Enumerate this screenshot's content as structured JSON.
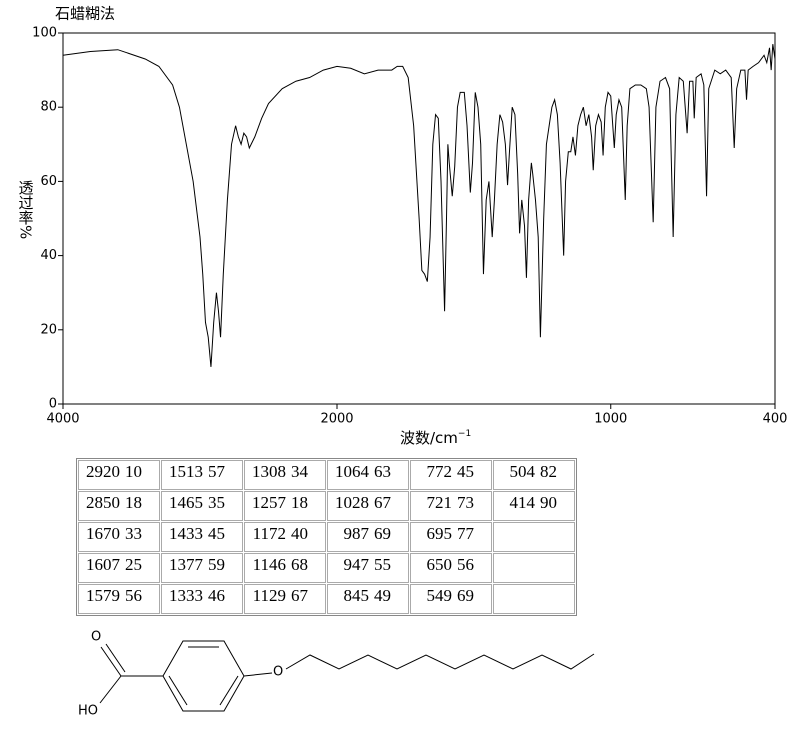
{
  "chart_data": {
    "type": "line",
    "title": "石蜡糊法",
    "xlabel": "波数/cm",
    "xlabel_sup": "−1",
    "ylabel": "透过率%",
    "xlim": [
      4000,
      400
    ],
    "xticks": [
      4000,
      2000,
      1000,
      400
    ],
    "xscale_break": 2000,
    "ylim": [
      0,
      100
    ],
    "yticks": [
      0,
      20,
      40,
      60,
      80,
      100
    ],
    "series": [
      {
        "color": "#000000",
        "x": [
          4000,
          3800,
          3600,
          3400,
          3300,
          3200,
          3150,
          3100,
          3050,
          3000,
          2980,
          2960,
          2940,
          2920,
          2900,
          2880,
          2865,
          2850,
          2830,
          2800,
          2770,
          2740,
          2720,
          2700,
          2680,
          2660,
          2640,
          2600,
          2550,
          2500,
          2400,
          2300,
          2200,
          2100,
          2000,
          1950,
          1900,
          1850,
          1800,
          1780,
          1760,
          1740,
          1720,
          1700,
          1690,
          1680,
          1670,
          1660,
          1650,
          1640,
          1630,
          1620,
          1607,
          1600,
          1595,
          1590,
          1579,
          1570,
          1560,
          1550,
          1535,
          1525,
          1513,
          1505,
          1495,
          1485,
          1475,
          1465,
          1455,
          1445,
          1433,
          1425,
          1415,
          1405,
          1395,
          1385,
          1377,
          1370,
          1360,
          1350,
          1340,
          1333,
          1325,
          1315,
          1308,
          1300,
          1290,
          1285,
          1275,
          1265,
          1257,
          1245,
          1235,
          1225,
          1215,
          1205,
          1195,
          1185,
          1172,
          1165,
          1155,
          1146,
          1138,
          1129,
          1120,
          1110,
          1100,
          1090,
          1080,
          1070,
          1064,
          1055,
          1045,
          1035,
          1028,
          1020,
          1010,
          1000,
          987,
          980,
          970,
          960,
          947,
          940,
          930,
          910,
          890,
          870,
          860,
          845,
          835,
          820,
          800,
          785,
          772,
          762,
          750,
          735,
          721,
          712,
          700,
          695,
          688,
          670,
          660,
          650,
          642,
          620,
          600,
          580,
          560,
          549,
          540,
          525,
          510,
          504,
          498,
          480,
          460,
          440,
          430,
          420,
          414,
          408,
          400
        ],
        "values": [
          94,
          95,
          95.5,
          93,
          91,
          86,
          80,
          70,
          60,
          45,
          35,
          22,
          18,
          10,
          22,
          30,
          25,
          18,
          35,
          55,
          70,
          75,
          72,
          70,
          73,
          72,
          69,
          72,
          77,
          81,
          85,
          87,
          88,
          90,
          91,
          90.5,
          89,
          90,
          90,
          91,
          91,
          88,
          75,
          50,
          36,
          35,
          33,
          45,
          70,
          78,
          77,
          60,
          25,
          50,
          70,
          65,
          56,
          64,
          80,
          84,
          84,
          75,
          57,
          65,
          84,
          80,
          70,
          35,
          55,
          60,
          45,
          55,
          70,
          78,
          76,
          70,
          59,
          68,
          80,
          78,
          62,
          46,
          55,
          48,
          34,
          55,
          65,
          62,
          55,
          45,
          18,
          50,
          70,
          75,
          80,
          82,
          78,
          65,
          40,
          60,
          68,
          68,
          72,
          67,
          75,
          78,
          80,
          75,
          78,
          72,
          63,
          75,
          78,
          76,
          67,
          80,
          84,
          83,
          69,
          78,
          82,
          80,
          55,
          75,
          85,
          86,
          86,
          85,
          80,
          49,
          80,
          87,
          88,
          85,
          45,
          78,
          88,
          87,
          73,
          87,
          87,
          77,
          88,
          89,
          86,
          56,
          85,
          90,
          89,
          90,
          88,
          69,
          85,
          90,
          90,
          82,
          90,
          91,
          92,
          94,
          92,
          96,
          90,
          97,
          93
        ]
      }
    ]
  },
  "table": {
    "rows": [
      [
        [
          2920,
          10
        ],
        [
          1513,
          57
        ],
        [
          1308,
          34
        ],
        [
          1064,
          63
        ],
        [
          772,
          45
        ],
        [
          504,
          82
        ]
      ],
      [
        [
          2850,
          18
        ],
        [
          1465,
          35
        ],
        [
          1257,
          18
        ],
        [
          1028,
          67
        ],
        [
          721,
          73
        ],
        [
          414,
          90
        ]
      ],
      [
        [
          1670,
          33
        ],
        [
          1433,
          45
        ],
        [
          1172,
          40
        ],
        [
          987,
          69
        ],
        [
          695,
          77
        ]
      ],
      [
        [
          1607,
          25
        ],
        [
          1377,
          59
        ],
        [
          1146,
          68
        ],
        [
          947,
          55
        ],
        [
          650,
          56
        ]
      ],
      [
        [
          1579,
          56
        ],
        [
          1333,
          46
        ],
        [
          1129,
          67
        ],
        [
          845,
          49
        ],
        [
          549,
          69
        ]
      ]
    ]
  },
  "structure": {
    "labels": [
      "O",
      "HO",
      "O"
    ]
  }
}
